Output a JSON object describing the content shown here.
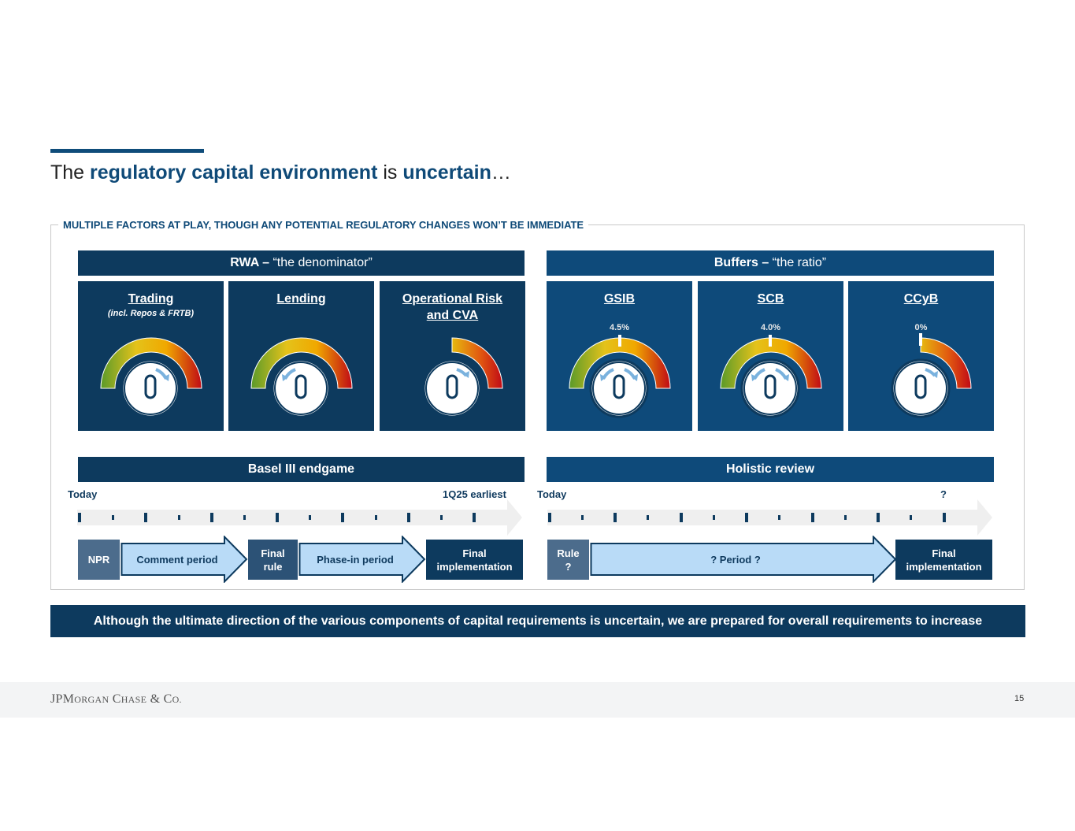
{
  "title": {
    "pre": "The ",
    "b1": "regulatory capital environment",
    "mid": " is ",
    "b2": "uncertain",
    "post": "…"
  },
  "frame_label": "MULTIPLE FACTORS AT PLAY, THOUGH ANY POTENTIAL REGULATORY CHANGES WON’T BE IMMEDIATE",
  "rwa": {
    "bold": "RWA –",
    "rest": " “the denominator”"
  },
  "buffers": {
    "bold": "Buffers –",
    "rest": " “the ratio”"
  },
  "boxes": {
    "trading": {
      "title": "Trading",
      "sub": "(incl. Repos & FRTB)"
    },
    "lending": {
      "title": "Lending"
    },
    "oprisk": {
      "title1": "Operational Risk",
      "title2": "and CVA"
    },
    "gsib": {
      "title": "GSIB",
      "value": "4.5%"
    },
    "scb": {
      "title": "SCB",
      "value": "4.0%"
    },
    "ccyb": {
      "title": "CCyB",
      "value": "0%"
    }
  },
  "basel": {
    "header": "Basel III endgame",
    "today": "Today",
    "end": "1Q25 earliest",
    "steps": {
      "npr": "NPR",
      "comment": "Comment period",
      "final_rule_1": "Final",
      "final_rule_2": "rule",
      "phase": "Phase-in period",
      "final_impl_1": "Final",
      "final_impl_2": "implementation"
    }
  },
  "holistic": {
    "header": "Holistic review",
    "today": "Today",
    "end": "?",
    "steps": {
      "rule_1": "Rule",
      "rule_2": "?",
      "period": "? Period ?",
      "final_impl_1": "Final",
      "final_impl_2": "implementation"
    }
  },
  "banner": "Although the ultimate direction of the various components of capital requirements is uncertain, we are prepared for overall requirements to increase",
  "footer": {
    "logo_a": "JPM",
    "logo_b": "ORGAN",
    "logo_c": " C",
    "logo_d": "HASE",
    "logo_e": " & C",
    "logo_f": "O.",
    "page": "15"
  },
  "colors": {
    "navy": "#0d3a5e",
    "mid_blue": "#0e4a7a",
    "light_arrow": "#b9dbf7"
  }
}
